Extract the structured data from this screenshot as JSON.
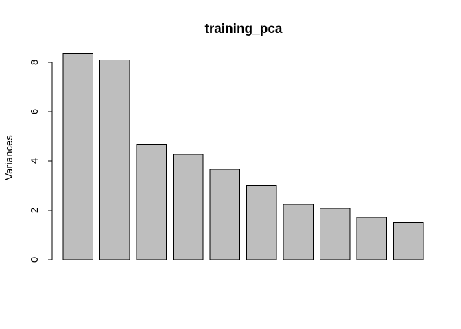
{
  "chart_data": {
    "type": "bar",
    "title": "training_pca",
    "xlabel": "",
    "ylabel": "Variances",
    "categories": [
      "",
      "",
      "",
      "",
      "",
      "",
      "",
      "",
      "",
      ""
    ],
    "values": [
      8.35,
      8.1,
      4.68,
      4.28,
      3.66,
      3.01,
      2.25,
      2.08,
      1.72,
      1.51
    ],
    "ylim": [
      0,
      8.5
    ],
    "yticks": [
      0,
      2,
      4,
      6,
      8
    ],
    "grid": false,
    "legend": "none",
    "colors": {
      "bar_fill": "#bebebe",
      "bar_stroke": "#000000",
      "background": "#ffffff"
    }
  }
}
